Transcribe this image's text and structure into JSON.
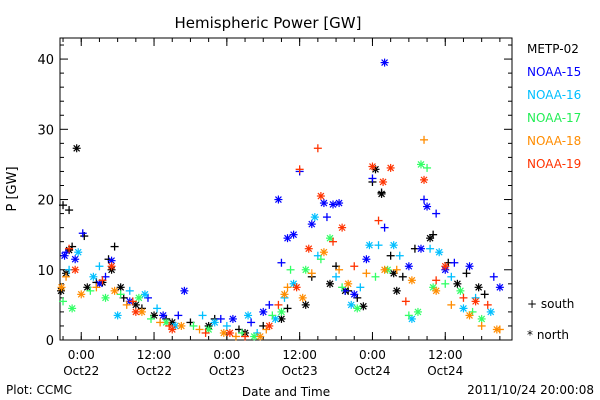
{
  "chart_data": {
    "type": "scatter",
    "title": "Hemispheric Power [GW]",
    "xlabel": "Date and Time",
    "ylabel": "P [GW]",
    "xlim": [
      "2011-10-21 20:30",
      "2011-10-24 23:00"
    ],
    "ylim": [
      0,
      43
    ],
    "yticks": [
      0,
      10,
      20,
      30,
      40
    ],
    "xticks": [
      {
        "x": "2011-10-22 00:00",
        "top": "0:00",
        "bottom": "Oct22"
      },
      {
        "x": "2011-10-22 12:00",
        "top": "12:00",
        "bottom": "Oct22"
      },
      {
        "x": "2011-10-23 00:00",
        "top": "0:00",
        "bottom": "Oct23"
      },
      {
        "x": "2011-10-23 12:00",
        "top": "12:00",
        "bottom": "Oct23"
      },
      {
        "x": "2011-10-24 00:00",
        "top": "0:00",
        "bottom": "Oct24"
      },
      {
        "x": "2011-10-24 12:00",
        "top": "12:00",
        "bottom": "Oct24"
      }
    ],
    "grid": false,
    "legend_position": "right",
    "series": [
      {
        "name": "METP-02",
        "color": "#000000",
        "south": [
          [
            "2011-10-21 21:00",
            19.2
          ],
          [
            "2011-10-21 22:00",
            18.5
          ],
          [
            "2011-10-21 22:30",
            13.3
          ],
          [
            "2011-10-22 00:30",
            14.8
          ],
          [
            "2011-10-22 04:30",
            11.5
          ],
          [
            "2011-10-22 05:30",
            13.3
          ],
          [
            "2011-10-22 02:30",
            8.2
          ],
          [
            "2011-10-22 07:00",
            6.0
          ],
          [
            "2011-10-22 10:00",
            4.5
          ],
          [
            "2011-10-22 14:00",
            3.0
          ],
          [
            "2011-10-22 18:00",
            2.5
          ],
          [
            "2011-10-22 22:00",
            3.0
          ],
          [
            "2011-10-23 02:00",
            1.5
          ],
          [
            "2011-10-23 06:00",
            2.0
          ],
          [
            "2011-10-23 10:00",
            4.5
          ],
          [
            "2011-10-23 14:00",
            9.0
          ],
          [
            "2011-10-23 18:00",
            10.5
          ],
          [
            "2011-10-23 20:00",
            7.0
          ],
          [
            "2011-10-23 21:30",
            6.0
          ],
          [
            "2011-10-24 00:00",
            22.5
          ],
          [
            "2011-10-24 01:30",
            21.0
          ],
          [
            "2011-10-24 03:00",
            12.0
          ],
          [
            "2011-10-24 05:00",
            9.0
          ],
          [
            "2011-10-24 07:00",
            13.0
          ],
          [
            "2011-10-24 10:00",
            15.0
          ],
          [
            "2011-10-24 12:30",
            11.0
          ],
          [
            "2011-10-24 15:30",
            9.5
          ],
          [
            "2011-10-24 18:30",
            6.5
          ]
        ],
        "north": [
          [
            "2011-10-21 20:40",
            7.0
          ],
          [
            "2011-10-21 21:30",
            9.5
          ],
          [
            "2011-10-21 22:00",
            12.8
          ],
          [
            "2011-10-21 23:15",
            27.3
          ],
          [
            "2011-10-22 01:00",
            7.5
          ],
          [
            "2011-10-22 03:30",
            8.2
          ],
          [
            "2011-10-22 05:00",
            10.0
          ],
          [
            "2011-10-22 06:30",
            7.5
          ],
          [
            "2011-10-22 09:00",
            5.0
          ],
          [
            "2011-10-22 12:00",
            3.5
          ],
          [
            "2011-10-22 15:00",
            2.5
          ],
          [
            "2011-10-22 21:00",
            2.0
          ],
          [
            "2011-10-23 03:00",
            1.0
          ],
          [
            "2011-10-23 09:00",
            3.0
          ],
          [
            "2011-10-23 13:00",
            5.0
          ],
          [
            "2011-10-23 17:00",
            8.0
          ],
          [
            "2011-10-23 19:30",
            7.0
          ],
          [
            "2011-10-23 22:30",
            4.8
          ],
          [
            "2011-10-24 00:30",
            24.3
          ],
          [
            "2011-10-24 01:30",
            20.8
          ],
          [
            "2011-10-24 03:30",
            9.5
          ],
          [
            "2011-10-24 04:00",
            7.0
          ],
          [
            "2011-10-24 09:30",
            14.5
          ],
          [
            "2011-10-24 14:00",
            8.0
          ],
          [
            "2011-10-24 17:30",
            7.5
          ]
        ]
      },
      {
        "name": "NOAA-15",
        "color": "#0000ff",
        "south": [
          [
            "2011-10-21 21:30",
            12.5
          ],
          [
            "2011-10-22 00:15",
            15.2
          ],
          [
            "2011-10-22 04:00",
            9.0
          ],
          [
            "2011-10-22 11:00",
            6.0
          ],
          [
            "2011-10-22 16:00",
            3.5
          ],
          [
            "2011-10-22 23:00",
            3.0
          ],
          [
            "2011-10-23 04:00",
            2.5
          ],
          [
            "2011-10-23 07:00",
            5.0
          ],
          [
            "2011-10-23 09:00",
            11.0
          ],
          [
            "2011-10-23 12:00",
            24.0
          ],
          [
            "2011-10-23 16:30",
            17.5
          ],
          [
            "2011-10-23 19:30",
            7.0
          ],
          [
            "2011-10-24 00:00",
            23.0
          ],
          [
            "2011-10-24 02:00",
            16.0
          ],
          [
            "2011-10-24 08:30",
            20.0
          ],
          [
            "2011-10-24 10:30",
            18.0
          ],
          [
            "2011-10-24 13:30",
            11.0
          ],
          [
            "2011-10-24 20:00",
            9.0
          ]
        ],
        "north": [
          [
            "2011-10-21 21:15",
            12.0
          ],
          [
            "2011-10-21 23:00",
            11.5
          ],
          [
            "2011-10-22 03:00",
            8.0
          ],
          [
            "2011-10-22 05:00",
            11.3
          ],
          [
            "2011-10-22 08:00",
            5.5
          ],
          [
            "2011-10-22 13:30",
            3.5
          ],
          [
            "2011-10-22 17:00",
            7.0
          ],
          [
            "2011-10-23 01:00",
            3.0
          ],
          [
            "2011-10-23 06:00",
            4.0
          ],
          [
            "2011-10-23 10:00",
            14.5
          ],
          [
            "2011-10-23 11:00",
            15.0
          ],
          [
            "2011-10-23 08:30",
            20.0
          ],
          [
            "2011-10-23 14:00",
            16.5
          ],
          [
            "2011-10-23 16:00",
            19.5
          ],
          [
            "2011-10-23 17:30",
            19.3
          ],
          [
            "2011-10-23 18:30",
            19.5
          ],
          [
            "2011-10-23 21:00",
            6.5
          ],
          [
            "2011-10-23 23:00",
            11.5
          ],
          [
            "2011-10-24 02:00",
            39.5
          ],
          [
            "2011-10-24 06:00",
            10.5
          ],
          [
            "2011-10-24 08:00",
            13.0
          ],
          [
            "2011-10-24 09:00",
            19.0
          ],
          [
            "2011-10-24 12:00",
            10.0
          ],
          [
            "2011-10-24 16:00",
            10.5
          ],
          [
            "2011-10-24 21:00",
            7.5
          ]
        ]
      },
      {
        "name": "NOAA-16",
        "color": "#00bfff",
        "south": [
          [
            "2011-10-21 22:00",
            10.0
          ],
          [
            "2011-10-22 03:00",
            10.5
          ],
          [
            "2011-10-22 08:00",
            7.0
          ],
          [
            "2011-10-22 12:30",
            4.5
          ],
          [
            "2011-10-22 20:00",
            3.5
          ],
          [
            "2011-10-23 00:00",
            2.0
          ],
          [
            "2011-10-23 05:00",
            1.0
          ],
          [
            "2011-10-23 09:30",
            6.0
          ],
          [
            "2011-10-23 15:00",
            12.0
          ],
          [
            "2011-10-23 18:00",
            9.0
          ],
          [
            "2011-10-23 22:00",
            7.5
          ],
          [
            "2011-10-24 01:00",
            13.5
          ],
          [
            "2011-10-24 04:30",
            12.0
          ],
          [
            "2011-10-24 09:30",
            13.0
          ],
          [
            "2011-10-24 13:00",
            9.0
          ],
          [
            "2011-10-24 17:00",
            6.0
          ]
        ],
        "north": [
          [
            "2011-10-21 23:30",
            12.5
          ],
          [
            "2011-10-22 02:00",
            9.0
          ],
          [
            "2011-10-22 06:00",
            3.5
          ],
          [
            "2011-10-22 10:30",
            6.5
          ],
          [
            "2011-10-22 15:30",
            2.0
          ],
          [
            "2011-10-22 22:00",
            2.5
          ],
          [
            "2011-10-23 03:30",
            3.5
          ],
          [
            "2011-10-23 08:00",
            3.0
          ],
          [
            "2011-10-23 11:00",
            8.0
          ],
          [
            "2011-10-23 14:30",
            17.5
          ],
          [
            "2011-10-23 20:30",
            5.0
          ],
          [
            "2011-10-23 23:30",
            13.5
          ],
          [
            "2011-10-24 03:30",
            13.5
          ],
          [
            "2011-10-24 06:30",
            3.0
          ],
          [
            "2011-10-24 11:00",
            12.5
          ],
          [
            "2011-10-24 15:00",
            4.5
          ],
          [
            "2011-10-24 19:30",
            4.0
          ]
        ]
      },
      {
        "name": "NOAA-17",
        "color": "#33ff66",
        "south": [
          [
            "2011-10-21 21:00",
            5.5
          ],
          [
            "2011-10-22 01:30",
            7.0
          ],
          [
            "2011-10-22 06:30",
            6.5
          ],
          [
            "2011-10-22 11:30",
            3.0
          ],
          [
            "2011-10-22 18:30",
            2.0
          ],
          [
            "2011-10-23 02:30",
            1.0
          ],
          [
            "2011-10-23 07:30",
            3.5
          ],
          [
            "2011-10-23 10:30",
            10.0
          ],
          [
            "2011-10-23 15:30",
            11.5
          ],
          [
            "2011-10-23 19:00",
            7.5
          ],
          [
            "2011-10-24 00:30",
            9.0
          ],
          [
            "2011-10-24 06:00",
            3.5
          ],
          [
            "2011-10-24 09:00",
            24.5
          ],
          [
            "2011-10-24 12:00",
            8.0
          ],
          [
            "2011-10-24 16:30",
            4.0
          ]
        ],
        "north": [
          [
            "2011-10-21 22:30",
            4.5
          ],
          [
            "2011-10-22 04:00",
            6.0
          ],
          [
            "2011-10-22 09:30",
            6.0
          ],
          [
            "2011-10-22 14:00",
            2.5
          ],
          [
            "2011-10-22 21:00",
            1.5
          ],
          [
            "2011-10-23 04:30",
            0.5
          ],
          [
            "2011-10-23 09:00",
            4.0
          ],
          [
            "2011-10-23 13:00",
            10.0
          ],
          [
            "2011-10-23 17:00",
            14.5
          ],
          [
            "2011-10-23 21:30",
            4.5
          ],
          [
            "2011-10-24 02:30",
            10.0
          ],
          [
            "2011-10-24 07:30",
            4.0
          ],
          [
            "2011-10-24 08:00",
            25.0
          ],
          [
            "2011-10-24 10:00",
            7.5
          ],
          [
            "2011-10-24 14:30",
            7.0
          ],
          [
            "2011-10-24 18:00",
            3.0
          ]
        ]
      },
      {
        "name": "NOAA-18",
        "color": "#ff8c00",
        "south": [
          [
            "2011-10-21 21:30",
            9.0
          ],
          [
            "2011-10-22 02:30",
            7.5
          ],
          [
            "2011-10-22 07:30",
            5.0
          ],
          [
            "2011-10-22 13:00",
            2.5
          ],
          [
            "2011-10-22 19:30",
            1.5
          ],
          [
            "2011-10-23 01:30",
            0.5
          ],
          [
            "2011-10-23 06:30",
            1.5
          ],
          [
            "2011-10-23 10:00",
            7.5
          ],
          [
            "2011-10-23 14:00",
            9.5
          ],
          [
            "2011-10-23 18:30",
            10.0
          ],
          [
            "2011-10-23 23:00",
            9.5
          ],
          [
            "2011-10-24 04:00",
            10.0
          ],
          [
            "2011-10-24 08:30",
            28.5
          ],
          [
            "2011-10-24 13:00",
            5.0
          ],
          [
            "2011-10-24 18:00",
            2.0
          ],
          [
            "2011-10-24 21:00",
            1.5
          ]
        ],
        "north": [
          [
            "2011-10-21 20:45",
            7.5
          ],
          [
            "2011-10-22 00:00",
            6.5
          ],
          [
            "2011-10-22 05:30",
            7.0
          ],
          [
            "2011-10-22 10:00",
            4.0
          ],
          [
            "2011-10-22 16:30",
            2.0
          ],
          [
            "2011-10-22 23:30",
            1.0
          ],
          [
            "2011-10-23 05:30",
            0.5
          ],
          [
            "2011-10-23 09:30",
            6.5
          ],
          [
            "2011-10-23 12:30",
            6.0
          ],
          [
            "2011-10-23 16:00",
            12.5
          ],
          [
            "2011-10-23 20:00",
            8.0
          ],
          [
            "2011-10-24 02:00",
            10.0
          ],
          [
            "2011-10-24 06:30",
            8.5
          ],
          [
            "2011-10-24 10:30",
            7.0
          ],
          [
            "2011-10-24 16:00",
            3.5
          ],
          [
            "2011-10-24 20:30",
            1.5
          ]
        ]
      },
      {
        "name": "NOAA-19",
        "color": "#ff3300",
        "south": [
          [
            "2011-10-21 22:00",
            13.0
          ],
          [
            "2011-10-22 03:30",
            8.5
          ],
          [
            "2011-10-22 08:30",
            5.5
          ],
          [
            "2011-10-22 14:30",
            2.0
          ],
          [
            "2011-10-22 20:30",
            1.0
          ],
          [
            "2011-10-23 03:00",
            0.5
          ],
          [
            "2011-10-23 08:30",
            5.0
          ],
          [
            "2011-10-23 12:00",
            24.3
          ],
          [
            "2011-10-23 15:00",
            27.3
          ],
          [
            "2011-10-23 17:30",
            14.0
          ],
          [
            "2011-10-23 21:00",
            10.5
          ],
          [
            "2011-10-24 01:00",
            17.0
          ],
          [
            "2011-10-24 05:30",
            5.5
          ],
          [
            "2011-10-24 10:30",
            8.5
          ],
          [
            "2011-10-24 15:00",
            6.0
          ],
          [
            "2011-10-24 19:00",
            5.0
          ]
        ],
        "north": [
          [
            "2011-10-21 23:00",
            10.0
          ],
          [
            "2011-10-22 05:00",
            10.5
          ],
          [
            "2011-10-22 09:00",
            4.0
          ],
          [
            "2011-10-22 15:00",
            1.5
          ],
          [
            "2011-10-23 00:30",
            1.0
          ],
          [
            "2011-10-23 07:00",
            2.0
          ],
          [
            "2011-10-23 11:30",
            7.5
          ],
          [
            "2011-10-23 13:30",
            13.0
          ],
          [
            "2011-10-23 15:30",
            20.5
          ],
          [
            "2011-10-23 19:00",
            16.0
          ],
          [
            "2011-10-24 00:00",
            24.7
          ],
          [
            "2011-10-24 01:45",
            22.5
          ],
          [
            "2011-10-24 03:00",
            24.5
          ],
          [
            "2011-10-24 08:30",
            22.8
          ],
          [
            "2011-10-24 12:00",
            10.5
          ],
          [
            "2011-10-24 17:00",
            5.5
          ]
        ]
      }
    ],
    "markers": {
      "south": "+",
      "north": "*"
    },
    "marker_legend": [
      {
        "symbol": "+",
        "label": "south"
      },
      {
        "symbol": "*",
        "label": "north"
      }
    ]
  },
  "footer": {
    "plot_credit": "Plot: CCMC",
    "timestamp": "2011/10/24 20:00:08"
  }
}
